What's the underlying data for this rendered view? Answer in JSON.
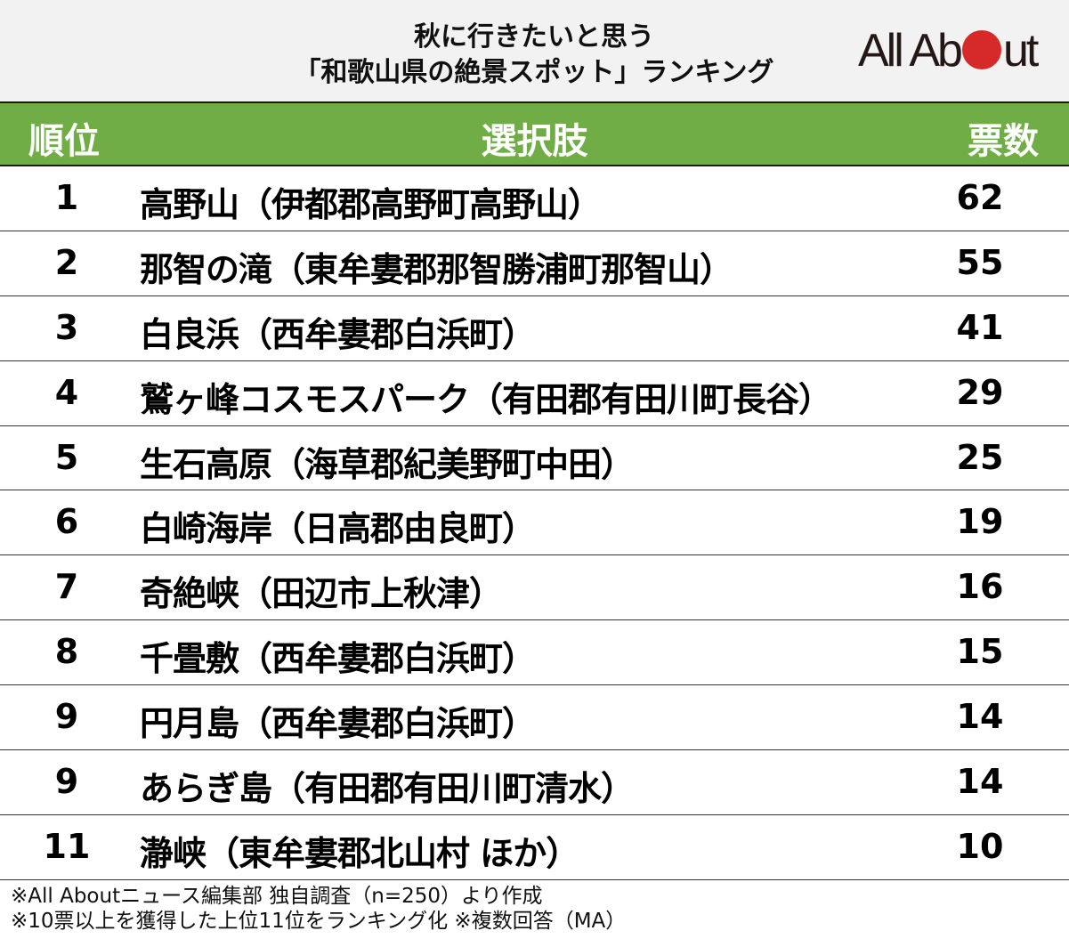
{
  "title": {
    "line1": "秋に行きたいと思う",
    "line2": "「和歌山県の絶景スポット」ランキング"
  },
  "logo": {
    "text_before": "All Ab",
    "text_after": "ut",
    "dot_color": "#d62a2a"
  },
  "colors": {
    "header_bg": "#70ad47",
    "title_bg": "#f2f2f2"
  },
  "table": {
    "headers": {
      "rank": "順位",
      "choice": "選択肢",
      "votes": "票数"
    },
    "rows": [
      {
        "rank": "1",
        "choice": "高野山（伊都郡高野町高野山）",
        "votes": "62"
      },
      {
        "rank": "2",
        "choice": "那智の滝（東牟婁郡那智勝浦町那智山）",
        "votes": "55"
      },
      {
        "rank": "3",
        "choice": "白良浜（西牟婁郡白浜町）",
        "votes": "41"
      },
      {
        "rank": "4",
        "choice": "鷲ヶ峰コスモスパーク（有田郡有田川町長谷）",
        "votes": "29"
      },
      {
        "rank": "5",
        "choice": "生石高原（海草郡紀美野町中田）",
        "votes": "25"
      },
      {
        "rank": "6",
        "choice": "白崎海岸（日高郡由良町）",
        "votes": "19"
      },
      {
        "rank": "7",
        "choice": "奇絶峡（田辺市上秋津）",
        "votes": "16"
      },
      {
        "rank": "8",
        "choice": "千畳敷（西牟婁郡白浜町）",
        "votes": "15"
      },
      {
        "rank": "9",
        "choice": "円月島（西牟婁郡白浜町）",
        "votes": "14"
      },
      {
        "rank": "9",
        "choice": "あらぎ島（有田郡有田川町清水）",
        "votes": "14"
      },
      {
        "rank": "11",
        "choice": "瀞峡（東牟婁郡北山村 ほか）",
        "votes": "10"
      }
    ]
  },
  "footer": {
    "line1": "※All Aboutニュース編集部 独自調査（n=250）より作成",
    "line2": "※10票以上を獲得した上位11位をランキング化 ※複数回答（MA）"
  }
}
